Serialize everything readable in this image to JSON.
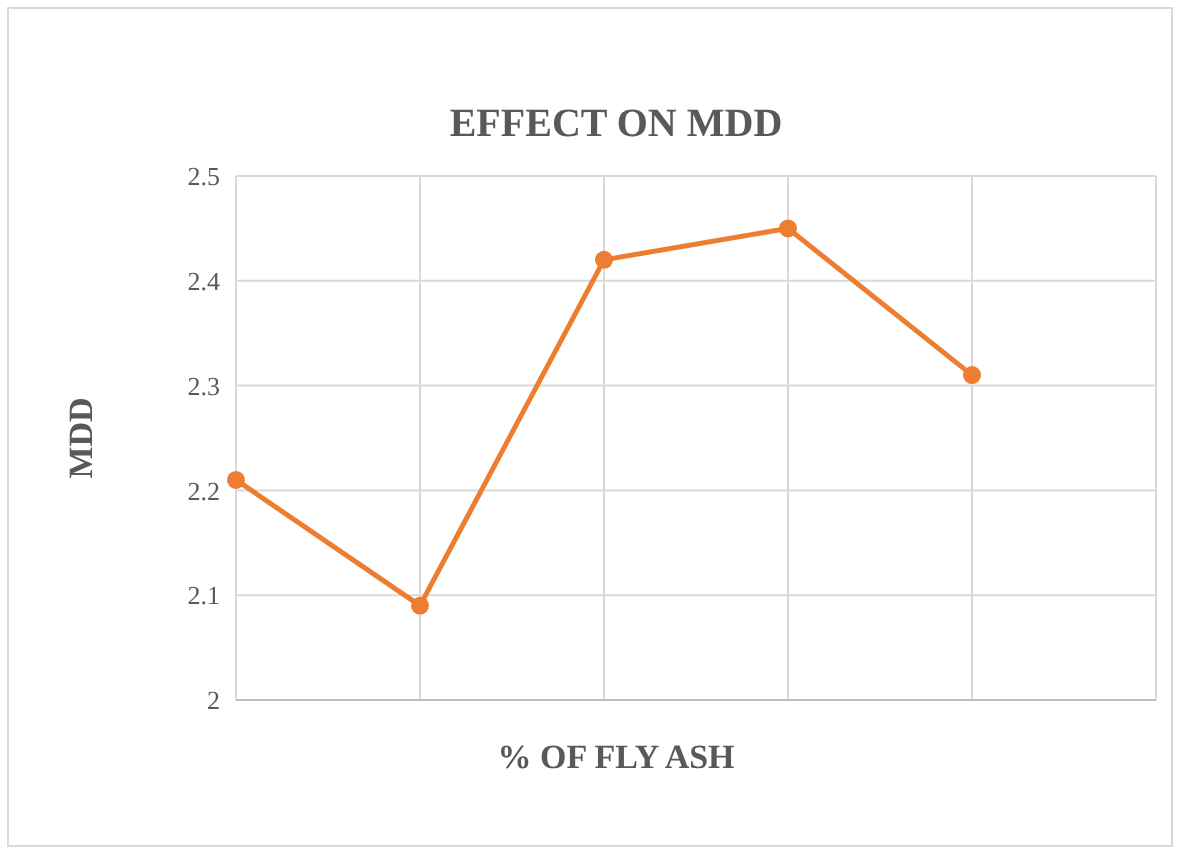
{
  "chart_data": {
    "type": "line",
    "title": "EFFECT ON MDD",
    "xlabel": "% OF FLY ASH",
    "ylabel": "MDD",
    "categories": [
      null,
      null,
      null,
      null,
      null,
      null
    ],
    "series": [
      {
        "color": "#ed7d31",
        "values": [
          2.21,
          2.09,
          2.42,
          2.45,
          2.31,
          null
        ]
      }
    ],
    "ylim": [
      2,
      2.5
    ],
    "yticks": [
      2,
      2.1,
      2.2,
      2.3,
      2.4,
      2.5
    ],
    "grid": true,
    "marker": "circle",
    "line_style": "solid"
  }
}
